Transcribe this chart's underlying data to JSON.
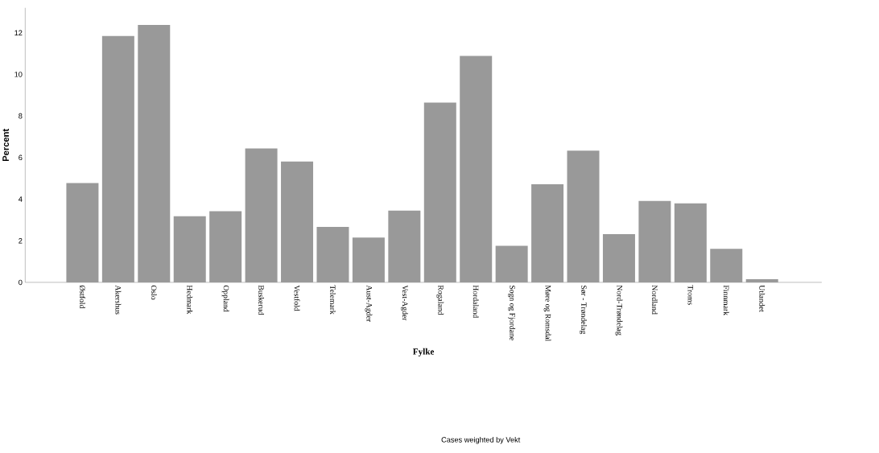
{
  "chart_data": {
    "type": "bar",
    "xlabel": "Fylke",
    "ylabel": "Percent",
    "categories": [
      "Østfold",
      "Akershus",
      "Oslo",
      "Hedmark",
      "Oppland",
      "Buskerud",
      "Vestfold",
      "Telemark",
      "Aust-Agder",
      "Vest-Agder",
      "Rogaland",
      "Hordaland",
      "Sogn og Fjordane",
      "Møre og Romsdal",
      "Sør - Trøndelag",
      "Nord-Trøndelag",
      "Nordland",
      "Troms",
      "Finnmark",
      "Utlandet"
    ],
    "values": [
      4.77,
      11.84,
      12.38,
      3.18,
      3.42,
      6.44,
      5.81,
      2.67,
      2.15,
      3.45,
      8.64,
      10.89,
      1.76,
      4.72,
      6.33,
      2.32,
      3.91,
      3.8,
      1.61,
      0.15
    ],
    "color": "#999999",
    "ylim": [
      0,
      13.2
    ],
    "yticks": [
      0,
      2,
      4,
      6,
      8,
      10,
      12
    ],
    "annotations": [
      "Cases weighted by Vekt"
    ]
  }
}
